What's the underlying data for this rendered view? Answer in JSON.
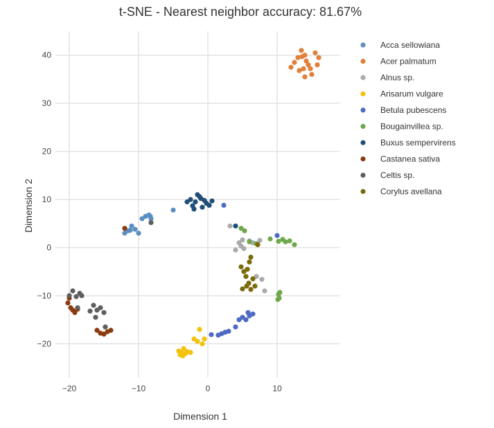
{
  "chart_data": {
    "type": "scatter",
    "title": "t-SNE - Nearest neighbor accuracy: 81.67%",
    "xlabel": "Dimension 1",
    "ylabel": "Dimension 2",
    "xlim": [
      -22,
      19
    ],
    "ylim": [
      -27,
      45
    ],
    "xticks": [
      "−20",
      "−10",
      "0",
      "10"
    ],
    "xtick_values": [
      -20,
      -10,
      0,
      10
    ],
    "yticks": [
      "−20",
      "−10",
      "0",
      "10",
      "20",
      "30",
      "40"
    ],
    "ytick_values": [
      -20,
      -10,
      0,
      10,
      20,
      30,
      40
    ],
    "grid": true,
    "legend_position": "right",
    "series": [
      {
        "name": "Acca sellowiana",
        "color": "#5b8fc2",
        "points": [
          [
            -12,
            3
          ],
          [
            -11.5,
            3.5
          ],
          [
            -11,
            4.5
          ],
          [
            -10.5,
            3.8
          ],
          [
            -10,
            3
          ],
          [
            -9.5,
            6
          ],
          [
            -9,
            6.5
          ],
          [
            -8.5,
            6.8
          ],
          [
            -8.2,
            6
          ],
          [
            -8.3,
            6.5
          ],
          [
            -5,
            7.8
          ],
          [
            -11.2,
            3.6
          ]
        ]
      },
      {
        "name": "Acer palmatum",
        "color": "#e0803a",
        "points": [
          [
            12,
            37.5
          ],
          [
            12.5,
            38.5
          ],
          [
            13,
            39.5
          ],
          [
            13.5,
            41
          ],
          [
            14,
            40
          ],
          [
            14.5,
            38
          ],
          [
            15,
            36
          ],
          [
            15.5,
            40.5
          ],
          [
            16,
            39.5
          ],
          [
            13.8,
            37.2
          ],
          [
            14.2,
            38.8
          ],
          [
            13.2,
            36.8
          ],
          [
            14.8,
            37.2
          ],
          [
            14,
            35.5
          ],
          [
            13.6,
            39.7
          ],
          [
            15.8,
            38
          ]
        ]
      },
      {
        "name": "Alnus sp.",
        "color": "#aaaaaa",
        "points": [
          [
            4,
            -0.5
          ],
          [
            4.5,
            1
          ],
          [
            5,
            1.6
          ],
          [
            5.2,
            -0.2
          ],
          [
            6,
            1.4
          ],
          [
            6.5,
            1
          ],
          [
            7,
            -6
          ],
          [
            7.5,
            1.5
          ],
          [
            7.8,
            -6.6
          ],
          [
            8.2,
            -9
          ],
          [
            3.2,
            4.5
          ],
          [
            4.8,
            0.3
          ]
        ]
      },
      {
        "name": "Arisarum vulgare",
        "color": "#f2c20c",
        "points": [
          [
            -4.2,
            -21.5
          ],
          [
            -4,
            -22.3
          ],
          [
            -3.8,
            -21.8
          ],
          [
            -3.5,
            -21
          ],
          [
            -3.2,
            -22
          ],
          [
            -3,
            -21.6
          ],
          [
            -2.5,
            -21.8
          ],
          [
            -2,
            -19
          ],
          [
            -1.5,
            -19.5
          ],
          [
            -1.2,
            -17
          ],
          [
            -0.8,
            -20
          ],
          [
            -0.5,
            -19
          ],
          [
            -3.6,
            -22.5
          ]
        ]
      },
      {
        "name": "Betula pubescens",
        "color": "#4e6bc4",
        "points": [
          [
            0.5,
            -18.1
          ],
          [
            1.5,
            -18.2
          ],
          [
            2,
            -17.9
          ],
          [
            2.5,
            -17.6
          ],
          [
            3,
            -17.4
          ],
          [
            4,
            -16.5
          ],
          [
            4.5,
            -15
          ],
          [
            5,
            -14.5
          ],
          [
            5.5,
            -15
          ],
          [
            6,
            -14.2
          ],
          [
            6.5,
            -13.8
          ],
          [
            10,
            2.5
          ],
          [
            2.3,
            8.8
          ],
          [
            5.8,
            -13.5
          ]
        ]
      },
      {
        "name": "Bougainvillea sp.",
        "color": "#6fa84c",
        "points": [
          [
            4.8,
            4
          ],
          [
            5.3,
            3.5
          ],
          [
            6,
            1.2
          ],
          [
            7,
            0.8
          ],
          [
            9,
            1.8
          ],
          [
            10.2,
            1.3
          ],
          [
            10.8,
            1.7
          ],
          [
            11.2,
            1.2
          ],
          [
            11.8,
            1.4
          ],
          [
            12.5,
            0.6
          ],
          [
            10.2,
            -9.7
          ],
          [
            10.3,
            -10.5
          ],
          [
            10.1,
            -10.8
          ],
          [
            10.4,
            -9.3
          ]
        ]
      },
      {
        "name": "Buxus sempervirens",
        "color": "#1f4e79",
        "points": [
          [
            -3,
            9.5
          ],
          [
            -2.5,
            10
          ],
          [
            -2.2,
            8.7
          ],
          [
            -2,
            8
          ],
          [
            -1.8,
            9.5
          ],
          [
            -1.5,
            11
          ],
          [
            -1.2,
            10.6
          ],
          [
            -0.8,
            8.4
          ],
          [
            -0.5,
            9.8
          ],
          [
            -0.2,
            9.2
          ],
          [
            0.2,
            8.8
          ],
          [
            0.6,
            9.7
          ],
          [
            4,
            4.5
          ],
          [
            -1,
            10.2
          ]
        ]
      },
      {
        "name": "Castanea sativa",
        "color": "#8b3a0f",
        "points": [
          [
            -20.2,
            -11.5
          ],
          [
            -19.8,
            -12.5
          ],
          [
            -19.5,
            -13
          ],
          [
            -19.2,
            -13.5
          ],
          [
            -18.8,
            -12.8
          ],
          [
            -16,
            -17.2
          ],
          [
            -15.5,
            -17.8
          ],
          [
            -15,
            -18
          ],
          [
            -14.5,
            -17.5
          ],
          [
            -14,
            -17.2
          ],
          [
            -12,
            4
          ],
          [
            -20,
            -10.5
          ]
        ]
      },
      {
        "name": "Celtis sp.",
        "color": "#5e5e5e",
        "points": [
          [
            -19.5,
            -9
          ],
          [
            -19,
            -10.2
          ],
          [
            -18.5,
            -9.5
          ],
          [
            -18.2,
            -10
          ],
          [
            -18.8,
            -12.5
          ],
          [
            -17,
            -13.2
          ],
          [
            -16.5,
            -12
          ],
          [
            -16,
            -13
          ],
          [
            -15.5,
            -12.5
          ],
          [
            -15,
            -13.5
          ],
          [
            -14.8,
            -16.5
          ],
          [
            -16.2,
            -14.5
          ],
          [
            -8.2,
            5.2
          ],
          [
            -20,
            -10
          ]
        ]
      },
      {
        "name": "Corylus avellana",
        "color": "#7a6a0a",
        "points": [
          [
            4.8,
            -4
          ],
          [
            5.2,
            -5
          ],
          [
            5.5,
            -6
          ],
          [
            5.7,
            -4.5
          ],
          [
            6,
            -3
          ],
          [
            6.2,
            -2
          ],
          [
            6.5,
            -6.5
          ],
          [
            6.8,
            -8
          ],
          [
            5,
            -8.6
          ],
          [
            5.6,
            -8
          ],
          [
            6.2,
            -8.7
          ],
          [
            7.2,
            0.6
          ],
          [
            5.9,
            -7.4
          ]
        ]
      }
    ]
  }
}
